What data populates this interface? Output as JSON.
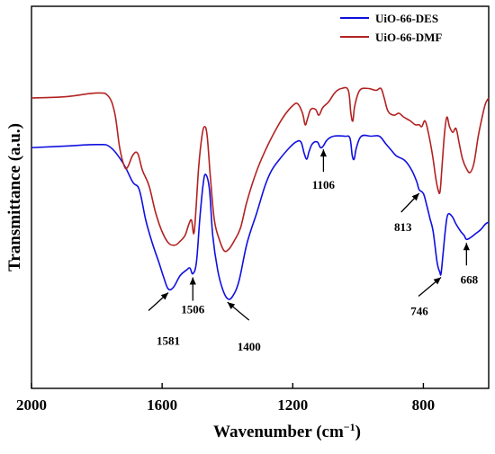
{
  "chart_data": {
    "type": "line",
    "xlabel": "Wavenumber (cm",
    "xlabel_superscript": "−1",
    "xlabel_suffix": ")",
    "ylabel": "Transmittance (a.u.)",
    "xlim": [
      2000,
      600
    ],
    "ylim": [
      0,
      100
    ],
    "x_reversed": true,
    "y_ticks_shown": false,
    "grid": false,
    "legend_position": "top-right",
    "xticks": [
      2000,
      1600,
      1200,
      800
    ],
    "series": [
      {
        "name": "UiO-66-DES",
        "color": "#1010e0",
        "points": [
          [
            2000,
            63
          ],
          [
            1900,
            63.4
          ],
          [
            1800,
            63.8
          ],
          [
            1760,
            63.2
          ],
          [
            1720,
            59
          ],
          [
            1690,
            54
          ],
          [
            1670,
            52
          ],
          [
            1650,
            44
          ],
          [
            1630,
            38
          ],
          [
            1610,
            33
          ],
          [
            1595,
            29
          ],
          [
            1581,
            26
          ],
          [
            1565,
            26.5
          ],
          [
            1545,
            29.5
          ],
          [
            1525,
            31
          ],
          [
            1515,
            31.5
          ],
          [
            1506,
            30
          ],
          [
            1495,
            33
          ],
          [
            1485,
            44
          ],
          [
            1475,
            53
          ],
          [
            1467,
            56
          ],
          [
            1455,
            52
          ],
          [
            1445,
            40
          ],
          [
            1430,
            31
          ],
          [
            1415,
            26
          ],
          [
            1400,
            23.5
          ],
          [
            1385,
            24
          ],
          [
            1365,
            28
          ],
          [
            1340,
            38
          ],
          [
            1310,
            46
          ],
          [
            1285,
            53
          ],
          [
            1265,
            57
          ],
          [
            1240,
            60
          ],
          [
            1210,
            63
          ],
          [
            1190,
            64.5
          ],
          [
            1175,
            64.5
          ],
          [
            1165,
            61.5
          ],
          [
            1157,
            60
          ],
          [
            1150,
            62
          ],
          [
            1140,
            64
          ],
          [
            1125,
            64.5
          ],
          [
            1115,
            63
          ],
          [
            1106,
            63.5
          ],
          [
            1095,
            65
          ],
          [
            1075,
            66
          ],
          [
            1040,
            66
          ],
          [
            1025,
            65.5
          ],
          [
            1018,
            61
          ],
          [
            1012,
            60
          ],
          [
            1005,
            63
          ],
          [
            990,
            66
          ],
          [
            960,
            66
          ],
          [
            935,
            66
          ],
          [
            915,
            64
          ],
          [
            900,
            62.5
          ],
          [
            885,
            61
          ],
          [
            875,
            60.5
          ],
          [
            855,
            59.5
          ],
          [
            835,
            57
          ],
          [
            820,
            54
          ],
          [
            813,
            52
          ],
          [
            800,
            51
          ],
          [
            790,
            48
          ],
          [
            780,
            44.5
          ],
          [
            770,
            41
          ],
          [
            758,
            33
          ],
          [
            750,
            30.5
          ],
          [
            746,
            30
          ],
          [
            740,
            35
          ],
          [
            732,
            42
          ],
          [
            725,
            45.5
          ],
          [
            712,
            45
          ],
          [
            700,
            43
          ],
          [
            685,
            41
          ],
          [
            675,
            40
          ],
          [
            668,
            39
          ],
          [
            655,
            39.5
          ],
          [
            640,
            40.5
          ],
          [
            625,
            41.5
          ],
          [
            610,
            43
          ],
          [
            600,
            43.5
          ]
        ]
      },
      {
        "name": "UiO-66-DMF",
        "color": "#b22222",
        "points": [
          [
            2000,
            76
          ],
          [
            1900,
            76.3
          ],
          [
            1800,
            77.3
          ],
          [
            1765,
            76.5
          ],
          [
            1745,
            72
          ],
          [
            1730,
            63
          ],
          [
            1715,
            58
          ],
          [
            1705,
            58
          ],
          [
            1690,
            61
          ],
          [
            1675,
            61.5
          ],
          [
            1660,
            57
          ],
          [
            1640,
            53
          ],
          [
            1620,
            46
          ],
          [
            1600,
            41
          ],
          [
            1580,
            38
          ],
          [
            1560,
            37.5
          ],
          [
            1545,
            38.5
          ],
          [
            1530,
            40
          ],
          [
            1518,
            43
          ],
          [
            1510,
            44
          ],
          [
            1503,
            40.5
          ],
          [
            1497,
            46
          ],
          [
            1488,
            58
          ],
          [
            1478,
            66
          ],
          [
            1470,
            68.5
          ],
          [
            1462,
            66
          ],
          [
            1452,
            55
          ],
          [
            1440,
            44
          ],
          [
            1425,
            39
          ],
          [
            1410,
            36
          ],
          [
            1395,
            36.5
          ],
          [
            1380,
            38.5
          ],
          [
            1360,
            42
          ],
          [
            1340,
            49
          ],
          [
            1310,
            57
          ],
          [
            1280,
            63
          ],
          [
            1250,
            68
          ],
          [
            1225,
            71.5
          ],
          [
            1200,
            74
          ],
          [
            1185,
            74.5
          ],
          [
            1170,
            72
          ],
          [
            1162,
            69
          ],
          [
            1155,
            70.5
          ],
          [
            1145,
            73
          ],
          [
            1130,
            73
          ],
          [
            1120,
            71.5
          ],
          [
            1108,
            73.5
          ],
          [
            1090,
            75
          ],
          [
            1070,
            77.5
          ],
          [
            1050,
            78.5
          ],
          [
            1030,
            78
          ],
          [
            1022,
            72
          ],
          [
            1016,
            70
          ],
          [
            1010,
            74
          ],
          [
            995,
            78
          ],
          [
            970,
            78.5
          ],
          [
            945,
            78
          ],
          [
            930,
            78.5
          ],
          [
            920,
            76
          ],
          [
            908,
            72.5
          ],
          [
            890,
            71.5
          ],
          [
            875,
            72
          ],
          [
            860,
            71
          ],
          [
            840,
            70
          ],
          [
            825,
            69
          ],
          [
            813,
            69
          ],
          [
            805,
            68.5
          ],
          [
            795,
            70
          ],
          [
            785,
            67
          ],
          [
            772,
            61
          ],
          [
            762,
            55
          ],
          [
            755,
            52
          ],
          [
            749,
            51.5
          ],
          [
            743,
            58
          ],
          [
            735,
            67
          ],
          [
            728,
            71
          ],
          [
            720,
            68.5
          ],
          [
            710,
            67
          ],
          [
            700,
            68
          ],
          [
            690,
            64
          ],
          [
            680,
            60
          ],
          [
            668,
            57.5
          ],
          [
            657,
            56.5
          ],
          [
            645,
            59
          ],
          [
            632,
            66
          ],
          [
            620,
            71
          ],
          [
            610,
            74.5
          ],
          [
            600,
            76
          ]
        ]
      }
    ],
    "annotations": [
      {
        "label": "1581",
        "x": 1581,
        "y": 26
      },
      {
        "label": "1506",
        "x": 1506,
        "y": 30
      },
      {
        "label": "1400",
        "x": 1400,
        "y": 23.5
      },
      {
        "label": "1106",
        "x": 1106,
        "y": 63.5
      },
      {
        "label": "813",
        "x": 813,
        "y": 52
      },
      {
        "label": "746",
        "x": 746,
        "y": 30
      },
      {
        "label": "668",
        "x": 668,
        "y": 39
      }
    ]
  }
}
